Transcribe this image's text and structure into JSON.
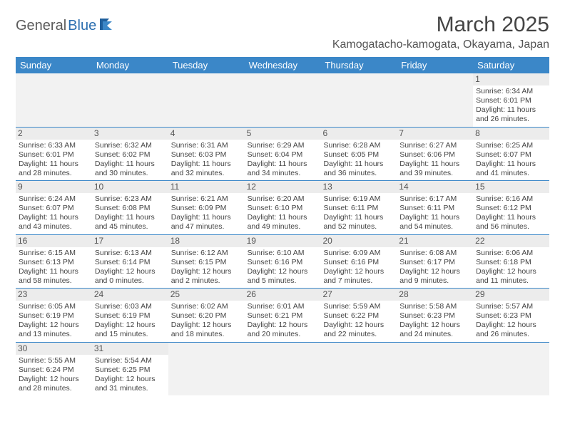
{
  "logo": {
    "part1": "General",
    "part2": "Blue"
  },
  "title": "March 2025",
  "location": "Kamogatacho-kamogata, Okayama, Japan",
  "header_bg": "#3b87c8",
  "weekdays": [
    "Sunday",
    "Monday",
    "Tuesday",
    "Wednesday",
    "Thursday",
    "Friday",
    "Saturday"
  ],
  "weeks": [
    [
      null,
      null,
      null,
      null,
      null,
      null,
      {
        "d": "1",
        "sr": "6:34 AM",
        "ss": "6:01 PM",
        "dl": "11 hours and 26 minutes."
      }
    ],
    [
      {
        "d": "2",
        "sr": "6:33 AM",
        "ss": "6:01 PM",
        "dl": "11 hours and 28 minutes."
      },
      {
        "d": "3",
        "sr": "6:32 AM",
        "ss": "6:02 PM",
        "dl": "11 hours and 30 minutes."
      },
      {
        "d": "4",
        "sr": "6:31 AM",
        "ss": "6:03 PM",
        "dl": "11 hours and 32 minutes."
      },
      {
        "d": "5",
        "sr": "6:29 AM",
        "ss": "6:04 PM",
        "dl": "11 hours and 34 minutes."
      },
      {
        "d": "6",
        "sr": "6:28 AM",
        "ss": "6:05 PM",
        "dl": "11 hours and 36 minutes."
      },
      {
        "d": "7",
        "sr": "6:27 AM",
        "ss": "6:06 PM",
        "dl": "11 hours and 39 minutes."
      },
      {
        "d": "8",
        "sr": "6:25 AM",
        "ss": "6:07 PM",
        "dl": "11 hours and 41 minutes."
      }
    ],
    [
      {
        "d": "9",
        "sr": "6:24 AM",
        "ss": "6:07 PM",
        "dl": "11 hours and 43 minutes."
      },
      {
        "d": "10",
        "sr": "6:23 AM",
        "ss": "6:08 PM",
        "dl": "11 hours and 45 minutes."
      },
      {
        "d": "11",
        "sr": "6:21 AM",
        "ss": "6:09 PM",
        "dl": "11 hours and 47 minutes."
      },
      {
        "d": "12",
        "sr": "6:20 AM",
        "ss": "6:10 PM",
        "dl": "11 hours and 49 minutes."
      },
      {
        "d": "13",
        "sr": "6:19 AM",
        "ss": "6:11 PM",
        "dl": "11 hours and 52 minutes."
      },
      {
        "d": "14",
        "sr": "6:17 AM",
        "ss": "6:11 PM",
        "dl": "11 hours and 54 minutes."
      },
      {
        "d": "15",
        "sr": "6:16 AM",
        "ss": "6:12 PM",
        "dl": "11 hours and 56 minutes."
      }
    ],
    [
      {
        "d": "16",
        "sr": "6:15 AM",
        "ss": "6:13 PM",
        "dl": "11 hours and 58 minutes."
      },
      {
        "d": "17",
        "sr": "6:13 AM",
        "ss": "6:14 PM",
        "dl": "12 hours and 0 minutes."
      },
      {
        "d": "18",
        "sr": "6:12 AM",
        "ss": "6:15 PM",
        "dl": "12 hours and 2 minutes."
      },
      {
        "d": "19",
        "sr": "6:10 AM",
        "ss": "6:16 PM",
        "dl": "12 hours and 5 minutes."
      },
      {
        "d": "20",
        "sr": "6:09 AM",
        "ss": "6:16 PM",
        "dl": "12 hours and 7 minutes."
      },
      {
        "d": "21",
        "sr": "6:08 AM",
        "ss": "6:17 PM",
        "dl": "12 hours and 9 minutes."
      },
      {
        "d": "22",
        "sr": "6:06 AM",
        "ss": "6:18 PM",
        "dl": "12 hours and 11 minutes."
      }
    ],
    [
      {
        "d": "23",
        "sr": "6:05 AM",
        "ss": "6:19 PM",
        "dl": "12 hours and 13 minutes."
      },
      {
        "d": "24",
        "sr": "6:03 AM",
        "ss": "6:19 PM",
        "dl": "12 hours and 15 minutes."
      },
      {
        "d": "25",
        "sr": "6:02 AM",
        "ss": "6:20 PM",
        "dl": "12 hours and 18 minutes."
      },
      {
        "d": "26",
        "sr": "6:01 AM",
        "ss": "6:21 PM",
        "dl": "12 hours and 20 minutes."
      },
      {
        "d": "27",
        "sr": "5:59 AM",
        "ss": "6:22 PM",
        "dl": "12 hours and 22 minutes."
      },
      {
        "d": "28",
        "sr": "5:58 AM",
        "ss": "6:23 PM",
        "dl": "12 hours and 24 minutes."
      },
      {
        "d": "29",
        "sr": "5:57 AM",
        "ss": "6:23 PM",
        "dl": "12 hours and 26 minutes."
      }
    ],
    [
      {
        "d": "30",
        "sr": "5:55 AM",
        "ss": "6:24 PM",
        "dl": "12 hours and 28 minutes."
      },
      {
        "d": "31",
        "sr": "5:54 AM",
        "ss": "6:25 PM",
        "dl": "12 hours and 31 minutes."
      },
      null,
      null,
      null,
      null,
      null
    ]
  ],
  "labels": {
    "sunrise": "Sunrise:",
    "sunset": "Sunset:",
    "daylight": "Daylight:"
  }
}
